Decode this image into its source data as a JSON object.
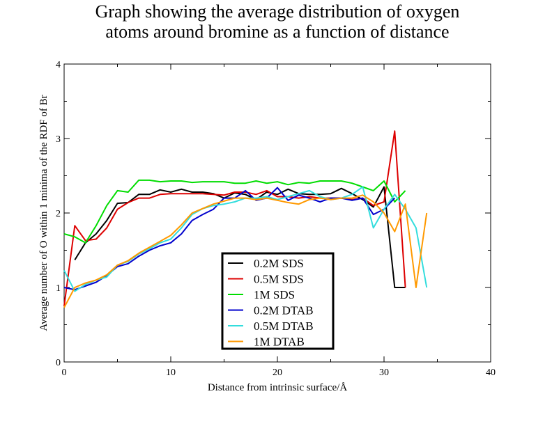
{
  "chart_data": {
    "type": "line",
    "title": [
      "Graph showing the average distribution of oxygen",
      "atoms around bromine as a function of distance"
    ],
    "xlabel": "Distance from intrinsic surface/Å",
    "ylabel": "Average number of O within 1 minima of the RDF of Br",
    "xlim": [
      0,
      40
    ],
    "ylim": [
      0,
      4
    ],
    "x_ticks": [
      0,
      10,
      20,
      30,
      40
    ],
    "y_ticks": [
      0,
      1,
      2,
      3,
      4
    ],
    "legend_position": "bottom-center",
    "series": [
      {
        "name": "0.2M SDS",
        "color": "#000000",
        "x": [
          1,
          2,
          3,
          4,
          5,
          6,
          7,
          8,
          9,
          10,
          11,
          12,
          13,
          14,
          15,
          16,
          17,
          18,
          19,
          20,
          21,
          22,
          23,
          24,
          25,
          26,
          27,
          28,
          29,
          30,
          31,
          32
        ],
        "y": [
          1.37,
          1.6,
          1.72,
          1.9,
          2.13,
          2.14,
          2.25,
          2.25,
          2.31,
          2.28,
          2.32,
          2.28,
          2.28,
          2.26,
          2.2,
          2.27,
          2.25,
          2.18,
          2.28,
          2.25,
          2.32,
          2.26,
          2.25,
          2.25,
          2.26,
          2.33,
          2.26,
          2.18,
          2.08,
          2.35,
          1.0,
          1.0
        ]
      },
      {
        "name": "0.5M SDS",
        "color": "#dd0000",
        "x": [
          0,
          1,
          2,
          3,
          4,
          5,
          6,
          7,
          8,
          9,
          10,
          11,
          12,
          13,
          14,
          15,
          16,
          17,
          18,
          19,
          20,
          21,
          22,
          23,
          24,
          25,
          26,
          27,
          28,
          29,
          30,
          31,
          32
        ],
        "y": [
          0.75,
          1.83,
          1.63,
          1.65,
          1.8,
          2.05,
          2.14,
          2.2,
          2.2,
          2.25,
          2.26,
          2.26,
          2.26,
          2.26,
          2.25,
          2.24,
          2.28,
          2.28,
          2.25,
          2.3,
          2.22,
          2.22,
          2.2,
          2.22,
          2.2,
          2.2,
          2.2,
          2.18,
          2.2,
          2.1,
          2.15,
          3.1,
          1.0
        ]
      },
      {
        "name": "1M SDS",
        "color": "#00dd00",
        "x": [
          0,
          1,
          2,
          3,
          4,
          5,
          6,
          7,
          8,
          9,
          10,
          11,
          12,
          13,
          14,
          15,
          16,
          17,
          18,
          19,
          20,
          21,
          22,
          23,
          24,
          25,
          26,
          27,
          28,
          29,
          30,
          31,
          32
        ],
        "y": [
          1.72,
          1.68,
          1.6,
          1.83,
          2.1,
          2.3,
          2.28,
          2.44,
          2.44,
          2.42,
          2.43,
          2.43,
          2.41,
          2.42,
          2.42,
          2.42,
          2.4,
          2.4,
          2.43,
          2.4,
          2.42,
          2.38,
          2.41,
          2.4,
          2.43,
          2.43,
          2.43,
          2.4,
          2.35,
          2.3,
          2.43,
          2.15,
          2.3
        ]
      },
      {
        "name": "0.2M DTAB",
        "color": "#0000cc",
        "x": [
          0,
          1,
          2,
          3,
          4,
          5,
          6,
          7,
          8,
          9,
          10,
          11,
          12,
          13,
          14,
          15,
          16,
          17,
          18,
          19,
          20,
          21,
          22,
          23,
          24,
          25,
          26,
          27,
          28,
          29,
          30,
          31
        ],
        "y": [
          1.0,
          0.97,
          1.02,
          1.07,
          1.16,
          1.28,
          1.32,
          1.42,
          1.5,
          1.56,
          1.6,
          1.72,
          1.9,
          1.98,
          2.05,
          2.2,
          2.2,
          2.3,
          2.17,
          2.2,
          2.34,
          2.17,
          2.24,
          2.2,
          2.15,
          2.2,
          2.2,
          2.17,
          2.2,
          1.98,
          2.05,
          2.2
        ]
      },
      {
        "name": "0.5M DTAB",
        "color": "#33dddd",
        "x": [
          0,
          1,
          2,
          3,
          4,
          5,
          6,
          7,
          8,
          9,
          10,
          11,
          12,
          13,
          14,
          15,
          16,
          17,
          18,
          19,
          20,
          21,
          22,
          23,
          24,
          25,
          26,
          27,
          28,
          29,
          30,
          31,
          32,
          33,
          34
        ],
        "y": [
          1.23,
          0.95,
          1.04,
          1.1,
          1.14,
          1.3,
          1.35,
          1.45,
          1.52,
          1.6,
          1.65,
          1.8,
          1.98,
          2.06,
          2.1,
          2.12,
          2.15,
          2.2,
          2.2,
          2.22,
          2.18,
          2.22,
          2.26,
          2.3,
          2.22,
          2.18,
          2.2,
          2.25,
          2.35,
          1.8,
          2.05,
          2.25,
          2.05,
          1.8,
          1.0
        ]
      },
      {
        "name": "1M DTAB",
        "color": "#ff9900",
        "x": [
          0,
          1,
          2,
          3,
          4,
          5,
          6,
          7,
          8,
          9,
          10,
          11,
          12,
          13,
          14,
          15,
          16,
          17,
          18,
          19,
          20,
          21,
          22,
          23,
          24,
          25,
          26,
          27,
          28,
          29,
          30,
          31,
          32,
          33,
          34
        ],
        "y": [
          0.73,
          1.0,
          1.06,
          1.1,
          1.17,
          1.3,
          1.36,
          1.46,
          1.54,
          1.62,
          1.7,
          1.84,
          2.0,
          2.06,
          2.12,
          2.16,
          2.2,
          2.2,
          2.18,
          2.2,
          2.17,
          2.14,
          2.12,
          2.18,
          2.2,
          2.18,
          2.2,
          2.2,
          2.24,
          2.15,
          2.0,
          1.75,
          2.12,
          1.0,
          2.0
        ]
      }
    ]
  }
}
